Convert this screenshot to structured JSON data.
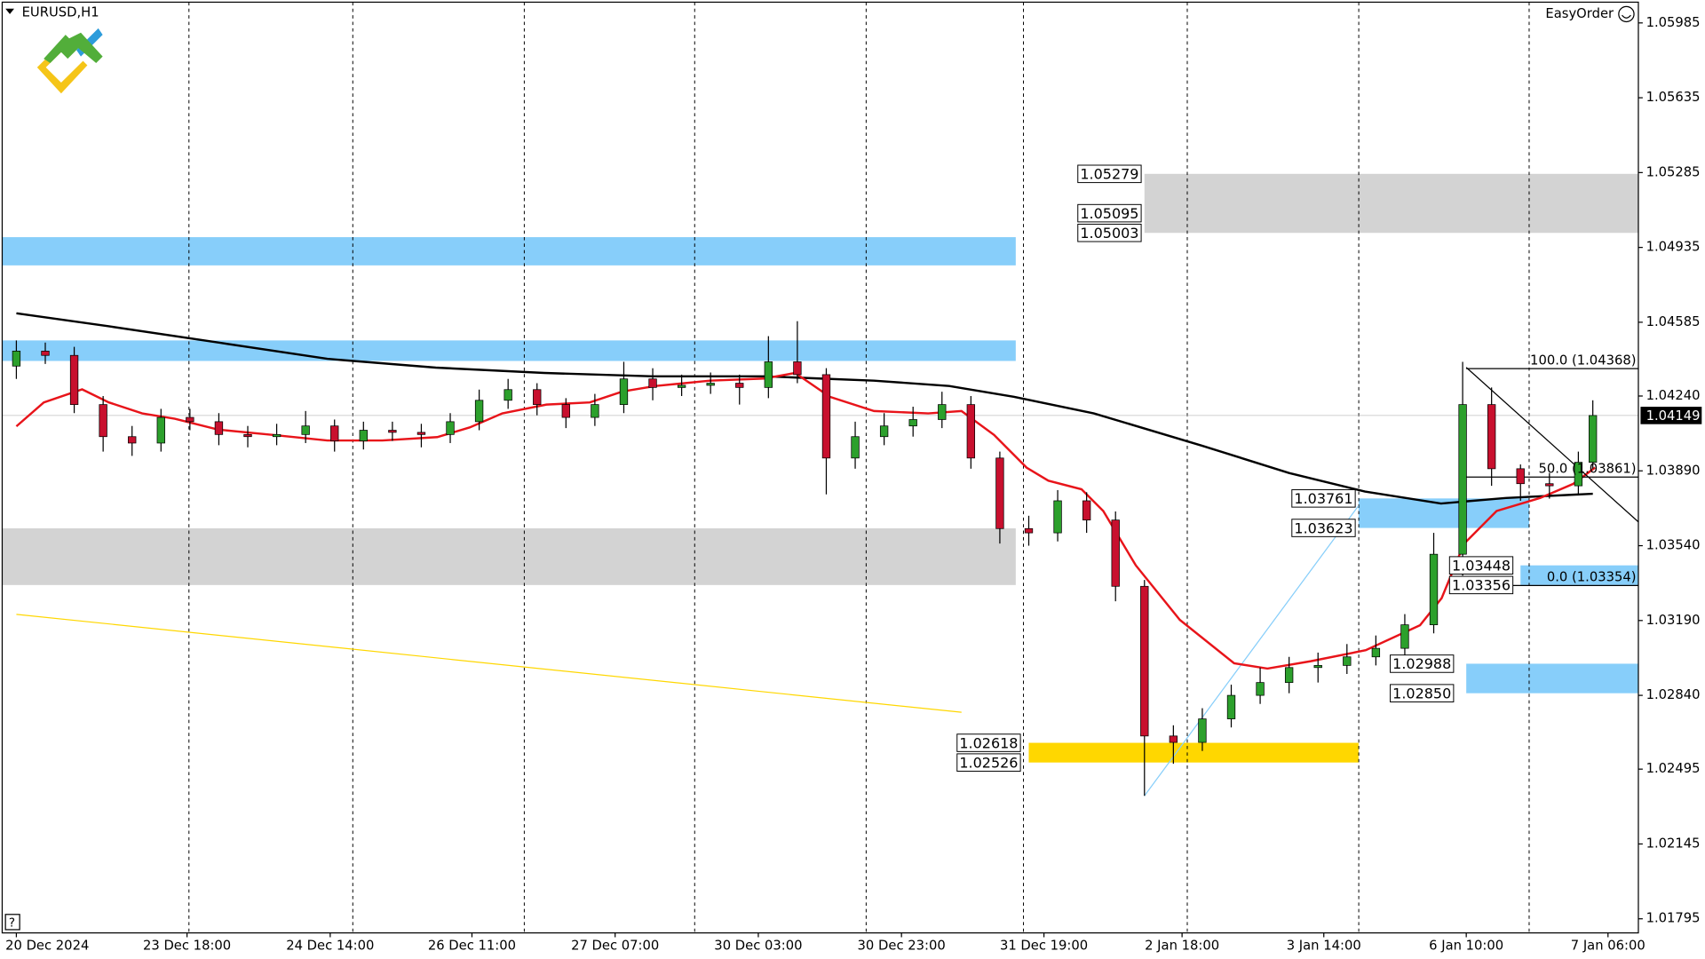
{
  "header": {
    "symbol": "EURUSD,H1",
    "plugin": "EasyOrder"
  },
  "chart_data": {
    "type": "candlestick",
    "xlim": [
      -1.96,
      224.3
    ],
    "ylim": [
      1.01729,
      1.06082
    ],
    "yticks": [
      1.05985,
      1.05635,
      1.05285,
      1.04935,
      1.04585,
      {
        "value": 1.0424,
        "label": "1.04240"
      },
      {
        "value": 1.0389,
        "label": "1.03890"
      },
      {
        "value": 1.0354,
        "label": "1.03540"
      },
      {
        "value": 1.0319,
        "label": "1.03190"
      },
      {
        "value": 1.0284,
        "label": "1.02840"
      },
      1.02495,
      1.02145,
      1.01795
    ],
    "xticks": [
      {
        "value": 0,
        "label": "20 Dec 2024"
      },
      {
        "value": 23.6,
        "label": "23 Dec 18:00"
      },
      {
        "value": 43.4,
        "label": "24 Dec 14:00"
      },
      {
        "value": 63,
        "label": "26 Dec 11:00"
      },
      {
        "value": 82.8,
        "label": "27 Dec 07:00"
      },
      {
        "value": 102.6,
        "label": "30 Dec 03:00"
      },
      {
        "value": 122.4,
        "label": "30 Dec 23:00"
      },
      {
        "value": 142.1,
        "label": "31 Dec 19:00"
      },
      {
        "value": 161.2,
        "label": "2 Jan 18:00"
      },
      {
        "value": 180.8,
        "label": "3 Jan 14:00"
      },
      {
        "value": 200.5,
        "label": "6 Jan 10:00"
      },
      {
        "value": 220.1,
        "label": "7 Jan 06:00"
      }
    ],
    "x": [
      0,
      4,
      8,
      12,
      16,
      20,
      24,
      28,
      32,
      36,
      40,
      44,
      48,
      52,
      56,
      60,
      64,
      68,
      72,
      76,
      80,
      84,
      88,
      92,
      96,
      100,
      104,
      108,
      112,
      116,
      120,
      124,
      128,
      132,
      136,
      140,
      144,
      148,
      152,
      156,
      160,
      164,
      168,
      172,
      176,
      180,
      184,
      188,
      192,
      196,
      200,
      204,
      208,
      212,
      216,
      218
    ],
    "open": [
      1.0438,
      1.0445,
      1.0443,
      1.042,
      1.0405,
      1.0402,
      1.0414,
      1.0412,
      1.0406,
      1.0405,
      1.0406,
      1.041,
      1.0403,
      1.0408,
      1.0407,
      1.0406,
      1.0412,
      1.0422,
      1.0427,
      1.042,
      1.0414,
      1.042,
      1.0432,
      1.0428,
      1.0429,
      1.043,
      1.0428,
      1.044,
      1.0434,
      1.0395,
      1.0405,
      1.041,
      1.0413,
      1.042,
      1.0395,
      1.0362,
      1.036,
      1.0375,
      1.0366,
      1.0335,
      1.0265,
      1.0262,
      1.0273,
      1.0284,
      1.029,
      1.0297,
      1.0298,
      1.0302,
      1.0306,
      1.0317,
      1.035,
      1.042,
      1.039,
      1.0383,
      1.0382,
      1.0393
    ],
    "high": [
      1.045,
      1.0449,
      1.0447,
      1.0424,
      1.041,
      1.0418,
      1.0418,
      1.0416,
      1.041,
      1.0411,
      1.0417,
      1.0413,
      1.0412,
      1.0412,
      1.0411,
      1.0416,
      1.0427,
      1.0432,
      1.043,
      1.0423,
      1.0425,
      1.044,
      1.0437,
      1.0434,
      1.0435,
      1.0434,
      1.0452,
      1.0459,
      1.0437,
      1.0412,
      1.0416,
      1.0419,
      1.0426,
      1.0424,
      1.0398,
      1.0368,
      1.038,
      1.0379,
      1.037,
      1.0338,
      1.027,
      1.0278,
      1.0289,
      1.0297,
      1.0302,
      1.0304,
      1.0308,
      1.0312,
      1.0322,
      1.036,
      1.044,
      1.0428,
      1.0392,
      1.0388,
      1.0398,
      1.0422
    ],
    "low": [
      1.0432,
      1.0439,
      1.0416,
      1.0398,
      1.0396,
      1.0398,
      1.0408,
      1.0401,
      1.04,
      1.0401,
      1.0402,
      1.0398,
      1.0399,
      1.0403,
      1.04,
      1.0402,
      1.0408,
      1.0418,
      1.0415,
      1.0409,
      1.041,
      1.0416,
      1.0422,
      1.0424,
      1.0425,
      1.042,
      1.0423,
      1.043,
      1.0378,
      1.039,
      1.0401,
      1.0405,
      1.0409,
      1.039,
      1.0355,
      1.0354,
      1.0356,
      1.036,
      1.0328,
      1.0237,
      1.0252,
      1.0258,
      1.0269,
      1.028,
      1.0285,
      1.029,
      1.0294,
      1.0298,
      1.0302,
      1.0313,
      1.034,
      1.0382,
      1.0375,
      1.0376,
      1.0378,
      1.039
    ],
    "close": [
      1.0445,
      1.0443,
      1.042,
      1.0405,
      1.0402,
      1.0414,
      1.0412,
      1.0406,
      1.0405,
      1.0406,
      1.041,
      1.0403,
      1.0408,
      1.0407,
      1.0406,
      1.0412,
      1.0422,
      1.0427,
      1.042,
      1.0414,
      1.042,
      1.0432,
      1.0428,
      1.0429,
      1.043,
      1.0428,
      1.044,
      1.0434,
      1.0395,
      1.0405,
      1.041,
      1.0413,
      1.042,
      1.0395,
      1.0362,
      1.036,
      1.0375,
      1.0366,
      1.0335,
      1.0265,
      1.0262,
      1.0273,
      1.0284,
      1.029,
      1.0297,
      1.0298,
      1.0302,
      1.0306,
      1.0317,
      1.035,
      1.042,
      1.039,
      1.0383,
      1.0382,
      1.0393,
      1.04149
    ],
    "up_color": "#2ca02c",
    "down_color": "#c8102e",
    "zones": [
      {
        "color": "#87cefa",
        "x": [
          -1.96,
          138.2
        ],
        "y": [
          1.04851,
          1.04983
        ]
      },
      {
        "color": "#87cefa",
        "x": [
          -1.96,
          138.2
        ],
        "y": [
          1.04404,
          1.045
        ]
      },
      {
        "color": "#d3d3d3",
        "x": [
          -1.96,
          138.2
        ],
        "y": [
          1.03356,
          1.03621
        ]
      },
      {
        "color": "#d3d3d3",
        "x": [
          156,
          224.3
        ],
        "y": [
          1.05003,
          1.05279
        ]
      },
      {
        "color": "#87cefa",
        "x": [
          185.6,
          209.2
        ],
        "y": [
          1.03623,
          1.03761
        ]
      },
      {
        "color": "#87cefa",
        "x": [
          208,
          224.3
        ],
        "y": [
          1.03356,
          1.03448
        ]
      },
      {
        "color": "#87cefa",
        "x": [
          200.5,
          224.3
        ],
        "y": [
          1.0285,
          1.02988
        ]
      },
      {
        "color": "#ffd700",
        "x": [
          140,
          185.6
        ],
        "y": [
          1.02526,
          1.02618
        ]
      }
    ],
    "lines": [
      {
        "color": "#ffd700",
        "width": 1,
        "x": [
          0,
          130.7
        ],
        "values": [
          1.03219,
          1.02761
        ]
      },
      {
        "color": "#87cefa",
        "width": 1,
        "x": [
          156,
          185.6
        ],
        "values": [
          1.0237,
          1.03727
        ]
      },
      {
        "color": "#000000",
        "width": 2,
        "x": [
          0,
          12.8,
          28,
          43,
          58,
          73,
          88,
          103.5,
          111,
          118.6,
          129,
          138,
          149,
          164,
          176,
          186.5,
          197,
          206,
          218
        ],
        "values": [
          1.04627,
          1.04566,
          1.0449,
          1.04414,
          1.04373,
          1.04348,
          1.04332,
          1.04332,
          1.04322,
          1.04312,
          1.04287,
          1.04236,
          1.04159,
          1.04007,
          1.0388,
          1.03793,
          1.03737,
          1.03763,
          1.03783
        ]
      },
      {
        "color": "#e8141a",
        "width": 2,
        "x": [
          0,
          3.8,
          9.1,
          12.8,
          17.4,
          21.9,
          27.9,
          35.5,
          43,
          50.6,
          58.2,
          62.7,
          67.2,
          73.3,
          79.3,
          83.8,
          88.4,
          95.9,
          103.5,
          107.7,
          112.5,
          118.6,
          126.1,
          130.7,
          135.2,
          139.7,
          142.7,
          147.3,
          150.3,
          154.8,
          160.9,
          168.4,
          173,
          179,
          186.6,
          194.1,
          197.1,
          200.2,
          204.7,
          210.7,
          215.3,
          218.3
        ],
        "values": [
          1.04098,
          1.0421,
          1.04271,
          1.0421,
          1.04159,
          1.04134,
          1.04083,
          1.04058,
          1.04032,
          1.04032,
          1.04048,
          1.04093,
          1.04159,
          1.042,
          1.0421,
          1.04261,
          1.04287,
          1.04312,
          1.04322,
          1.04348,
          1.04236,
          1.0417,
          1.04159,
          1.0417,
          1.04058,
          1.03905,
          1.03844,
          1.03804,
          1.03702,
          1.03448,
          1.03193,
          1.0299,
          1.02965,
          1.03,
          1.03051,
          1.03168,
          1.03295,
          1.03549,
          1.03702,
          1.03763,
          1.03829,
          1.03905
        ]
      },
      {
        "color": "#000000",
        "width": 1,
        "x": [
          200.5,
          224.3
        ],
        "values": [
          1.04374,
          1.03651
        ]
      }
    ],
    "price_labels": [
      {
        "price": 1.05279,
        "x": 156
      },
      {
        "price": 1.05095,
        "x": 156
      },
      {
        "price": 1.05003,
        "x": 156
      },
      {
        "price": 1.03761,
        "x": 185.6
      },
      {
        "price": 1.03623,
        "x": 185.6
      },
      {
        "price": 1.03448,
        "x": 207.4
      },
      {
        "price": 1.03356,
        "x": 207.4
      },
      {
        "price": 1.02988,
        "x": 199.2
      },
      {
        "price": {
          "value": 1.0285,
          "label": "1.02850"
        },
        "x": 199.2
      },
      {
        "price": 1.02618,
        "x": 139.3
      },
      {
        "price": 1.02526,
        "x": 139.3
      }
    ],
    "fib": {
      "x": [
        200.5,
        224.3
      ],
      "levels": [
        {
          "value": 1.04368,
          "label": "100.0 (1.04368)"
        },
        {
          "value": 1.03861,
          "label": "50.0 (1.03861)"
        },
        {
          "value": 1.03354,
          "label": "0.0 (1.03354)"
        }
      ]
    },
    "current_price": 1.04149
  }
}
